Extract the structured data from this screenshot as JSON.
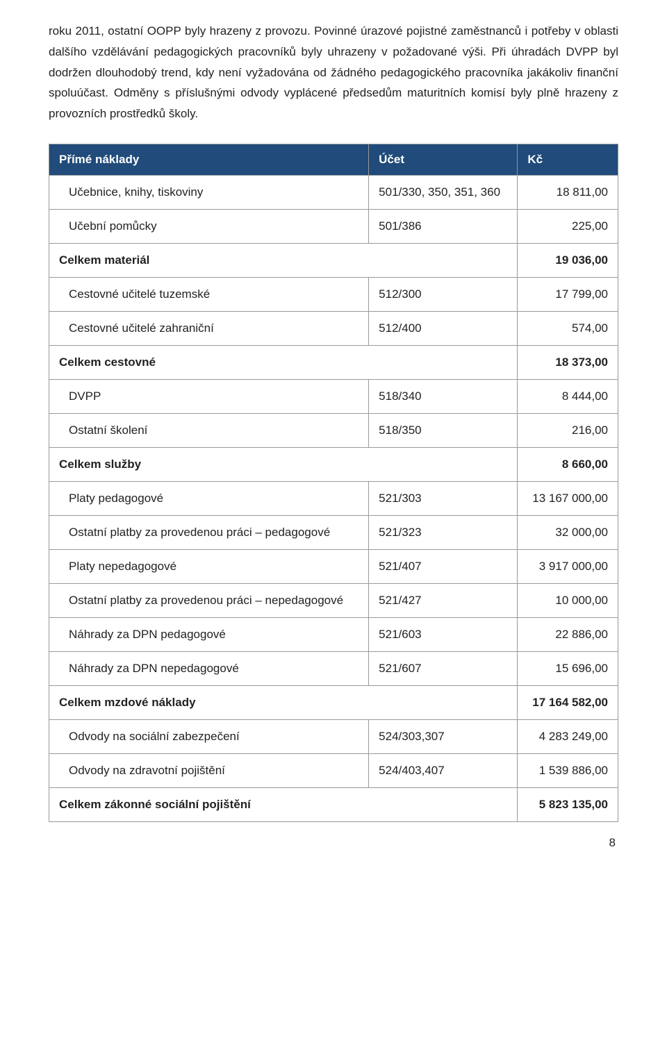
{
  "intro_text": "roku 2011, ostatní OOPP byly hrazeny z provozu. Povinné úrazové pojistné zaměstnanců i potřeby v oblasti dalšího vzdělávání pedagogických pracovníků byly uhrazeny v požadované výši. Při úhradách DVPP byl dodržen dlouhodobý trend, kdy není vyžadována od žádného pedagogického pracovníka jakákoliv finanční spoluúčast. Odměny s příslušnými odvody vyplácené předsedům maturitních komisí byly plně hrazeny z provozních prostředků školy.",
  "columns": [
    "Přímé náklady",
    "Účet",
    "Kč"
  ],
  "rows": [
    {
      "type": "item",
      "label": "Učebnice, knihy, tiskoviny",
      "account": "501/330, 350, 351, 360",
      "value": "18 811,00"
    },
    {
      "type": "item",
      "label": "Učební pomůcky",
      "account": "501/386",
      "value": "225,00"
    },
    {
      "type": "subtotal",
      "label": "Celkem materiál",
      "account": "",
      "value": "19 036,00"
    },
    {
      "type": "item",
      "label": "Cestovné učitelé tuzemské",
      "account": "512/300",
      "value": "17 799,00"
    },
    {
      "type": "item",
      "label": "Cestovné učitelé zahraniční",
      "account": "512/400",
      "value": "574,00"
    },
    {
      "type": "subtotal",
      "label": "Celkem cestovné",
      "account": "",
      "value": "18 373,00"
    },
    {
      "type": "item",
      "label": "DVPP",
      "account": "518/340",
      "value": "8 444,00"
    },
    {
      "type": "item",
      "label": "Ostatní školení",
      "account": "518/350",
      "value": "216,00"
    },
    {
      "type": "subtotal",
      "label": "Celkem služby",
      "account": "",
      "value": "8 660,00"
    },
    {
      "type": "item",
      "label": "Platy pedagogové",
      "account": "521/303",
      "value": "13 167 000,00"
    },
    {
      "type": "item",
      "label": "Ostatní platby za provedenou práci – pedagogové",
      "account": "521/323",
      "value": "32 000,00"
    },
    {
      "type": "item",
      "label": "Platy nepedagogové",
      "account": "521/407",
      "value": "3 917 000,00"
    },
    {
      "type": "item",
      "label": "Ostatní platby za provedenou práci – nepedagogové",
      "account": "521/427",
      "value": "10 000,00"
    },
    {
      "type": "item",
      "label": "Náhrady za DPN pedagogové",
      "account": "521/603",
      "value": "22 886,00"
    },
    {
      "type": "item",
      "label": "Náhrady za DPN nepedagogové",
      "account": "521/607",
      "value": "15 696,00"
    },
    {
      "type": "subtotal",
      "label": "Celkem mzdové náklady",
      "account": "",
      "value": "17 164 582,00"
    },
    {
      "type": "item",
      "label": "Odvody na sociální zabezpečení",
      "account": "524/303,307",
      "value": "4 283 249,00"
    },
    {
      "type": "item",
      "label": "Odvody na zdravotní pojištění",
      "account": "524/403,407",
      "value": "1 539 886,00"
    },
    {
      "type": "subtotal",
      "label": "Celkem zákonné sociální pojištění",
      "account": "",
      "value": "5 823 135,00"
    }
  ],
  "page_number": "8",
  "colors": {
    "header_bg": "#204b7a",
    "header_fg": "#ffffff",
    "border": "#999999",
    "text": "#222222",
    "background": "#ffffff"
  }
}
